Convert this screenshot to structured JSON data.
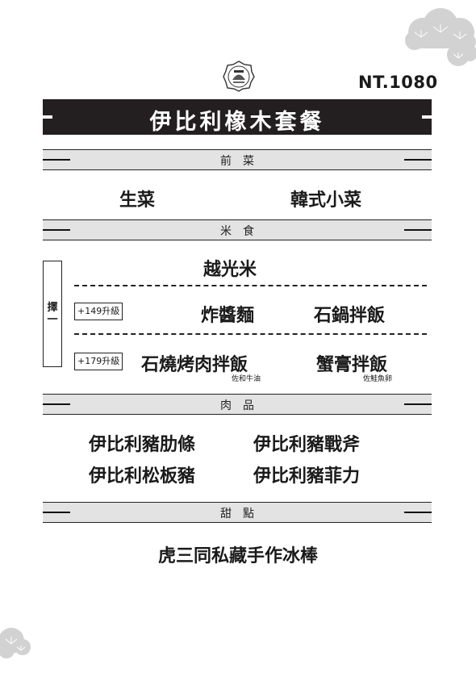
{
  "price": "NT.1080",
  "title": "伊比利橡木套餐",
  "sections": [
    {
      "label": "前菜"
    },
    {
      "label": "米食"
    },
    {
      "label": "肉品"
    },
    {
      "label": "甜點"
    }
  ],
  "appetizers": [
    "生菜",
    "韓式小菜"
  ],
  "rice": {
    "default": "越光米",
    "choose_label": "擇一",
    "options": [
      {
        "upgrade": "+149升級",
        "items": [
          {
            "name": "炸醬麵",
            "note": ""
          },
          {
            "name": "石鍋拌飯",
            "note": ""
          }
        ]
      },
      {
        "upgrade": "+179升級",
        "items": [
          {
            "name": "石燒烤肉拌飯",
            "note": "佐和牛油"
          },
          {
            "name": "蟹膏拌飯",
            "note": "佐鮭魚卵"
          }
        ]
      }
    ]
  },
  "meats": [
    "伊比利豬肋條",
    "伊比利豬戰斧",
    "伊比利松板豬",
    "伊比利豬菲力"
  ],
  "dessert": "虎三同私藏手作冰棒",
  "colors": {
    "title_bar": "#231f20",
    "section_bg": "#e3e3e3",
    "cloud": "#d6d6d6"
  },
  "icons": [
    "cloud-icon",
    "logo-icon"
  ]
}
